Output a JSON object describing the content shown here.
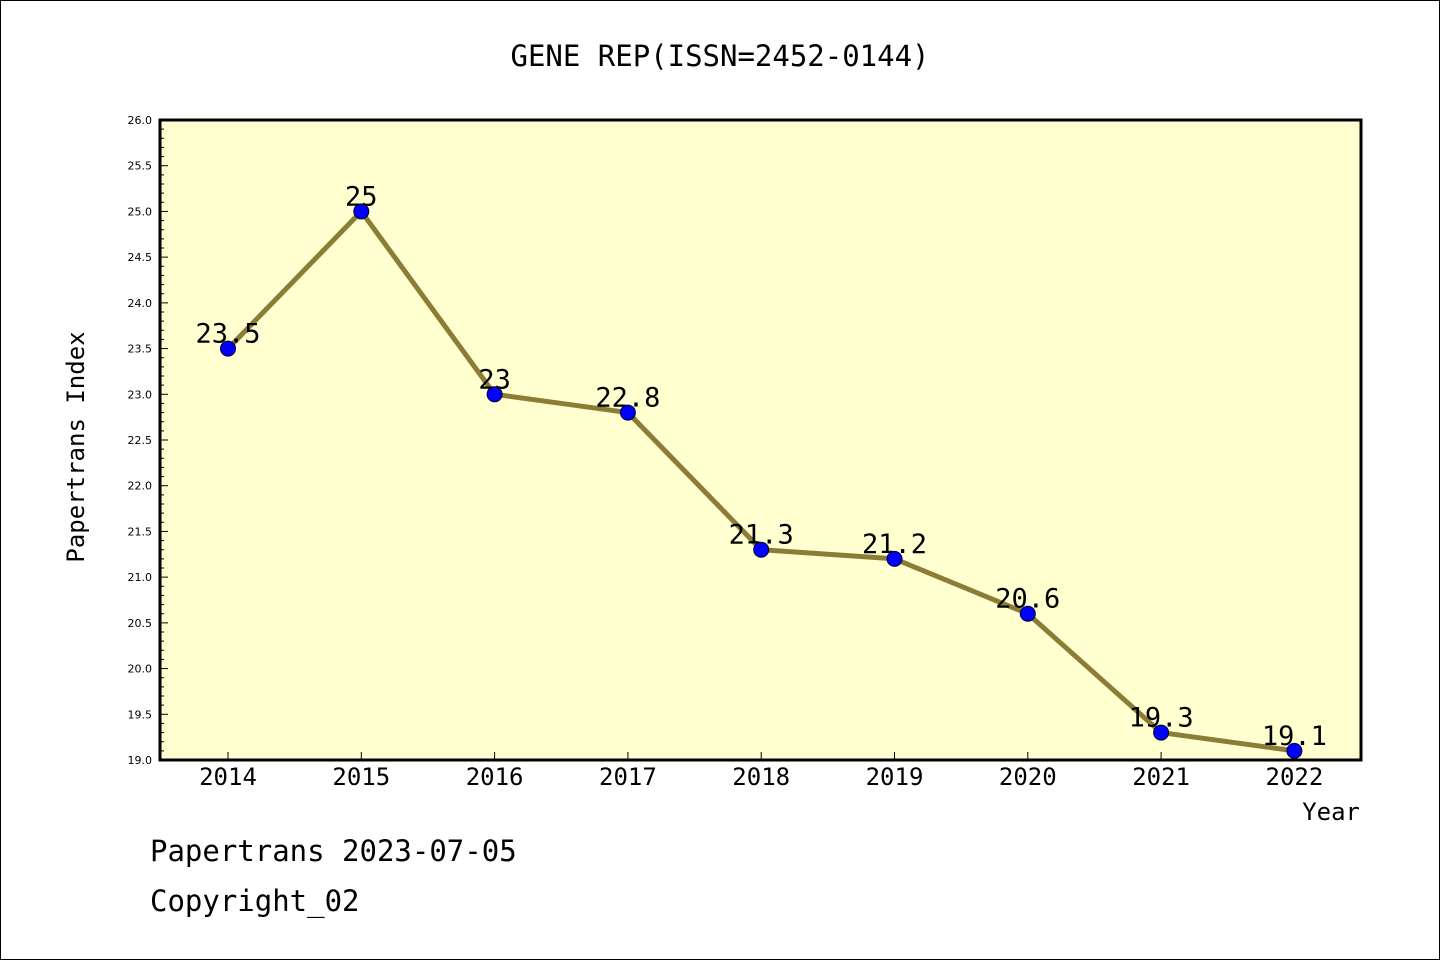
{
  "chart_data": {
    "type": "line",
    "title": "GENE REP(ISSN=2452-0144)",
    "xlabel": "Year",
    "ylabel": "Papertrans Index",
    "categories": [
      "2014",
      "2015",
      "2016",
      "2017",
      "2018",
      "2019",
      "2020",
      "2021",
      "2022"
    ],
    "series": [
      {
        "values": [
          23.5,
          25,
          23,
          22.8,
          21.3,
          21.2,
          20.6,
          19.3,
          19.1
        ],
        "labels": [
          "23.5",
          "25",
          "23",
          "22.8",
          "21.3",
          "21.2",
          "20.6",
          "19.3",
          "19.1"
        ]
      }
    ],
    "ylim": [
      19.0,
      26.0
    ],
    "yticks": [
      "19.0",
      "19.5",
      "20.0",
      "20.5",
      "21.0",
      "21.5",
      "22.0",
      "22.5",
      "23.0",
      "23.5",
      "24.0",
      "24.5",
      "25.0",
      "25.5",
      "26.0"
    ],
    "grid": false,
    "legend": "none",
    "colors": {
      "plot_background": "#ffffd0",
      "line": "#8b7d35",
      "marker": "#0000ff"
    }
  },
  "footer": {
    "line1": "Papertrans 2023-07-05",
    "line2": "Copyright_02"
  }
}
